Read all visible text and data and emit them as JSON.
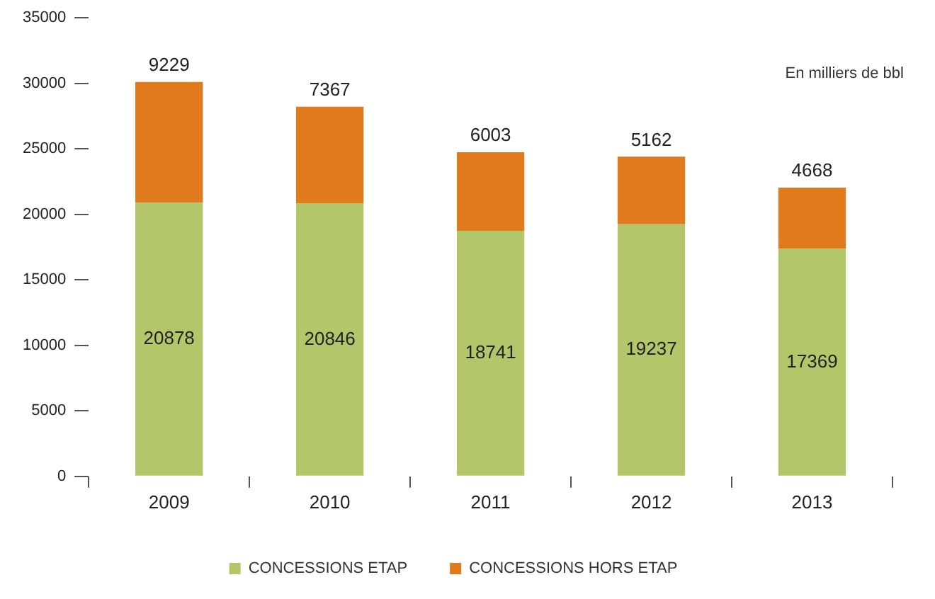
{
  "chart_data": {
    "type": "bar",
    "stacked": true,
    "categories": [
      "2009",
      "2010",
      "2011",
      "2012",
      "2013"
    ],
    "series": [
      {
        "name": "CONCESSIONS ETAP",
        "color": "#b3c76a",
        "values": [
          20878,
          20846,
          18741,
          19237,
          17369
        ]
      },
      {
        "name": "CONCESSIONS HORS ETAP",
        "color": "#e07a1c",
        "values": [
          9229,
          7367,
          6003,
          5162,
          4668
        ]
      }
    ],
    "ylim": [
      0,
      35000
    ],
    "yticks": [
      0,
      5000,
      10000,
      15000,
      20000,
      25000,
      30000,
      35000
    ],
    "grid": false,
    "legend": "bottom",
    "data_labels": true,
    "annotations": [
      "En milliers de bbl"
    ]
  }
}
